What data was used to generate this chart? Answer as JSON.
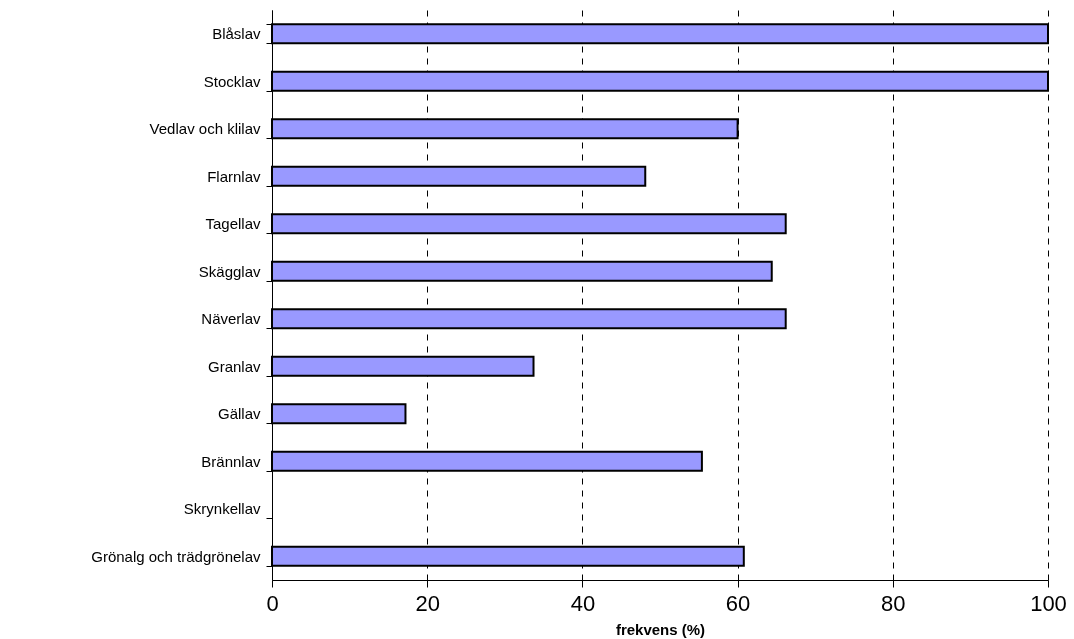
{
  "chart_data": {
    "type": "bar",
    "orientation": "horizontal",
    "categories": [
      "Blåslav",
      "Stocklav",
      "Vedlav och klilav",
      "Flarnlav",
      "Tagellav",
      "Skägglav",
      "Näverlav",
      "Granlav",
      "Gällav",
      "Brännlav",
      "Skrynkellav",
      "Grönalg och trädgrönelav"
    ],
    "values": [
      100,
      100,
      60,
      48.1,
      66.2,
      64.4,
      66.2,
      33.7,
      17.2,
      55.4,
      null,
      60.8
    ],
    "color": "#9999ff",
    "xlabel": "frekvens (%)",
    "xlim": [
      0,
      100
    ],
    "xticks": [
      0,
      20,
      40,
      60,
      80,
      100
    ],
    "grid": "x",
    "line_style": "dashed"
  }
}
